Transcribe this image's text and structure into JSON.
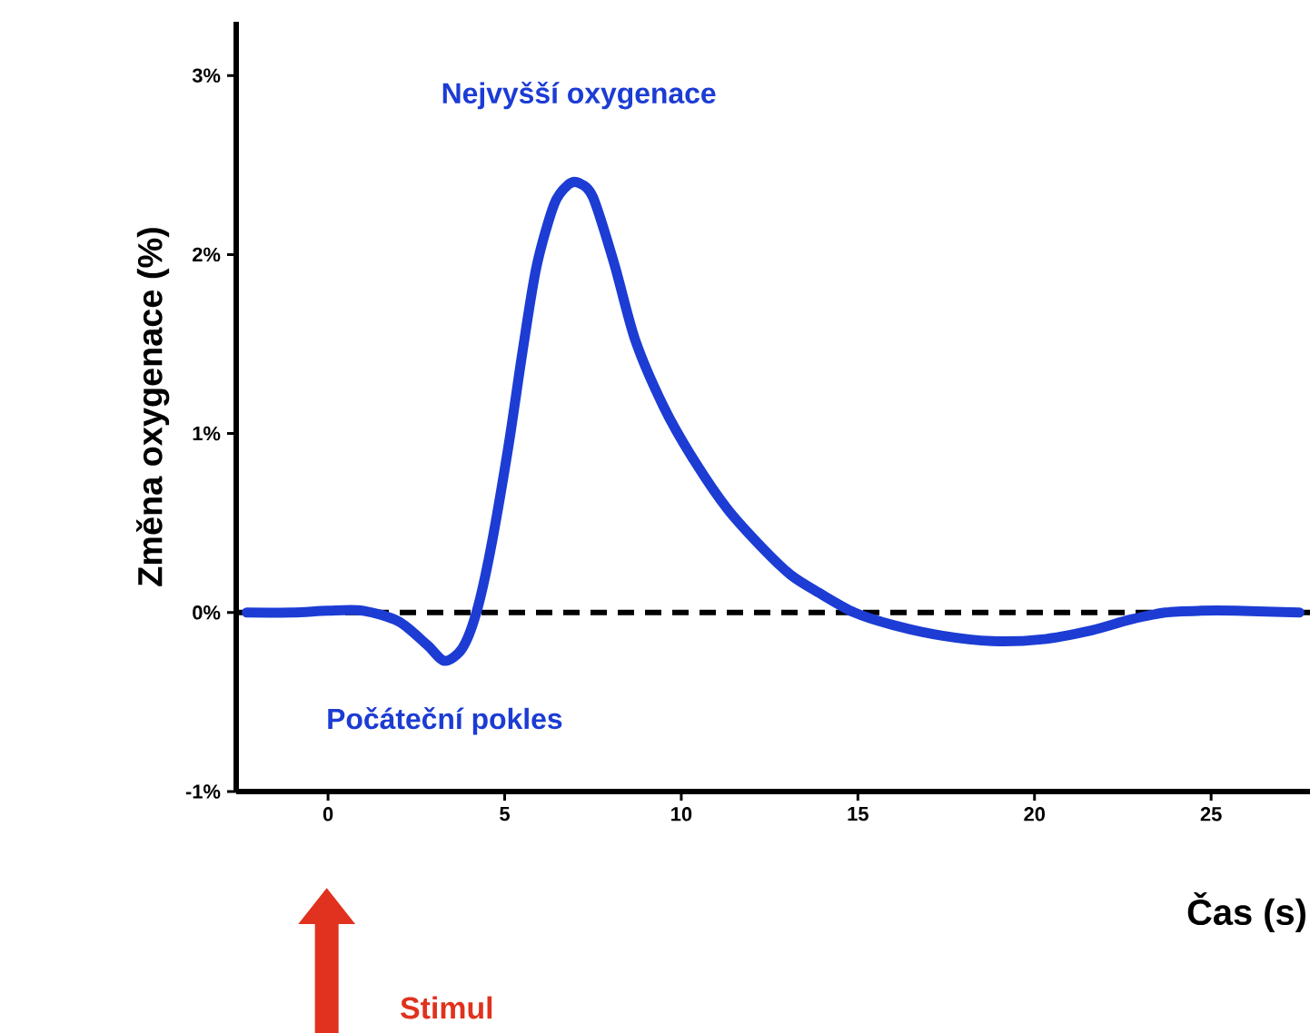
{
  "chart_data": {
    "type": "line",
    "xlabel": "Čas (s)",
    "ylabel": "Změna oxygenace (%)",
    "x": [
      -2.3,
      -1,
      0,
      1,
      2,
      2.8,
      3.3,
      3.8,
      4.2,
      4.6,
      5.1,
      5.5,
      5.9,
      6.4,
      6.8,
      7.1,
      7.5,
      8.1,
      8.7,
      9.5,
      10.3,
      11.3,
      12.3,
      13.1,
      13.9,
      14.9,
      16,
      17.4,
      18.8,
      20.2,
      21.6,
      22.7,
      23.7,
      24.7,
      25.7,
      27.5
    ],
    "series": [
      {
        "color": "#1c3cd4",
        "values": [
          0,
          0,
          0.01,
          0.01,
          -0.05,
          -0.18,
          -0.27,
          -0.2,
          0,
          0.35,
          0.92,
          1.45,
          1.93,
          2.28,
          2.39,
          2.4,
          2.32,
          1.95,
          1.52,
          1.15,
          0.87,
          0.58,
          0.36,
          0.21,
          0.11,
          0,
          -0.07,
          -0.13,
          -0.16,
          -0.15,
          -0.1,
          -0.04,
          0,
          0.01,
          0.01,
          0
        ]
      }
    ],
    "xlim": [
      -2.6,
      27.8
    ],
    "ylim": [
      -1,
      3.3
    ],
    "xticks": [
      0,
      5,
      10,
      15,
      20,
      25
    ],
    "yticks": [
      {
        "value": -1,
        "label": "-1%"
      },
      {
        "value": 0,
        "label": "0%"
      },
      {
        "value": 1,
        "label": "1%"
      },
      {
        "value": 2,
        "label": "2%"
      },
      {
        "value": 3,
        "label": "3%"
      }
    ],
    "ref_lines": [
      {
        "axis": "y",
        "value": 0,
        "color": "#000000",
        "line_style": "dashed"
      }
    ],
    "annotations": [
      {
        "text": "Nejvyšší oxygenace",
        "x": 7.1,
        "y": 2.4
      },
      {
        "text": "Počáteční pokles",
        "x": 3.3,
        "y": -0.27
      },
      "Stimul"
    ],
    "grid": false
  }
}
